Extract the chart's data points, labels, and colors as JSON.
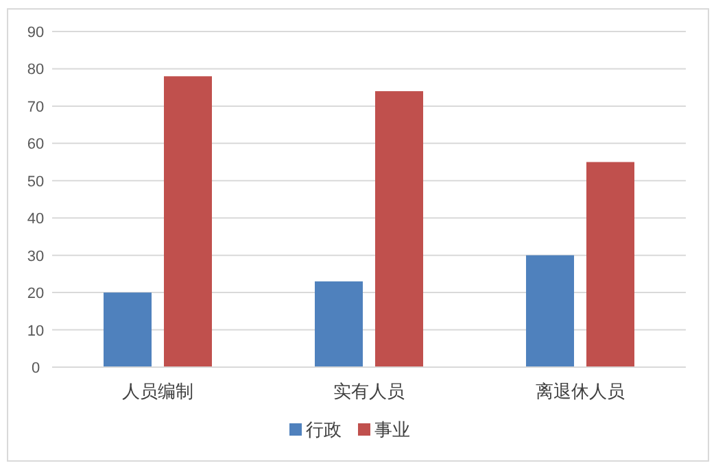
{
  "chart_data": {
    "type": "bar",
    "categories": [
      "人员编制",
      "实有人员",
      "离退休人员"
    ],
    "series": [
      {
        "name": "行政",
        "color": "#4f81bd",
        "values": [
          20,
          23,
          30
        ]
      },
      {
        "name": "事业",
        "color": "#c0504d",
        "values": [
          78,
          74,
          55
        ]
      }
    ],
    "ylim": [
      0,
      90
    ],
    "yticks": [
      0,
      10,
      20,
      30,
      40,
      50,
      60,
      70,
      80,
      90
    ],
    "grid": "y",
    "legend": "bottom"
  }
}
